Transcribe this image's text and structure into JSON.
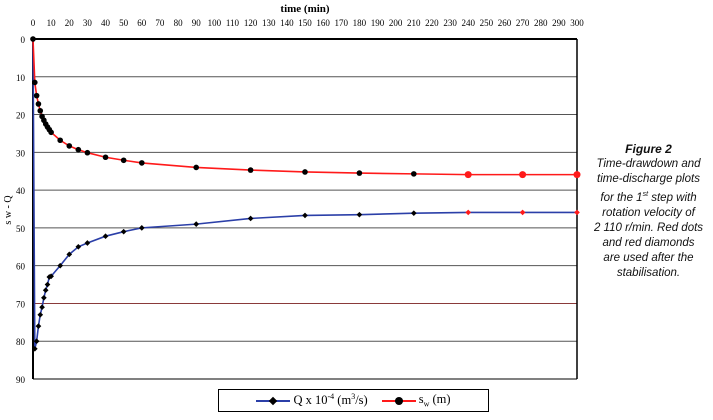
{
  "chart_data": {
    "type": "line",
    "title": "time (min)",
    "xlabel": "time (min)",
    "ylabel": "s w - Q",
    "xlim": [
      0,
      300
    ],
    "ylim": [
      0,
      90
    ],
    "y_inverted": true,
    "x_axis_position": "top",
    "xticks": [
      0,
      10,
      20,
      30,
      40,
      50,
      60,
      70,
      80,
      90,
      100,
      110,
      120,
      130,
      140,
      150,
      160,
      170,
      180,
      190,
      200,
      210,
      220,
      230,
      240,
      250,
      260,
      270,
      280,
      290,
      300
    ],
    "yticks": [
      0,
      10,
      20,
      30,
      40,
      50,
      60,
      70,
      80,
      90
    ],
    "grid": true,
    "legend_placement": "bottom",
    "series": [
      {
        "name": "Q x 10-4 (m3/s)",
        "label_main": "Q x 10",
        "label_exp": "-4",
        "label_unit": " (m",
        "label_unit_exp": "3",
        "label_end": "/s)",
        "color": "#2b3fa8",
        "marker": "diamond",
        "x": [
          0,
          1,
          2,
          3,
          4,
          5,
          6,
          7,
          8,
          9,
          10,
          15,
          20,
          25,
          30,
          40,
          50,
          60,
          90,
          120,
          150,
          180,
          210,
          240,
          270,
          300
        ],
        "y": [
          0,
          82,
          80,
          76,
          73,
          71,
          68.5,
          66.5,
          65,
          63,
          62.8,
          60,
          57,
          55,
          54,
          52.2,
          51,
          50,
          49,
          47.5,
          46.7,
          46.5,
          46.1,
          45.9,
          45.9,
          45.9
        ]
      },
      {
        "name": "sw (m)",
        "label_main": "s",
        "label_sub": "w",
        "label_end": " (m)",
        "color": "#ff1a1a",
        "marker": "circle",
        "x": [
          0,
          1,
          2,
          3,
          4,
          5,
          6,
          7,
          8,
          9,
          10,
          15,
          20,
          25,
          30,
          40,
          50,
          60,
          90,
          120,
          150,
          180,
          210,
          240,
          270,
          300
        ],
        "y": [
          0,
          11.5,
          15,
          17.2,
          19,
          20.5,
          21.5,
          22.5,
          23.3,
          24,
          24.7,
          26.8,
          28.3,
          29.3,
          30.1,
          31.3,
          32.1,
          32.8,
          34,
          34.7,
          35.2,
          35.5,
          35.7,
          35.9,
          35.9,
          35.9
        ]
      }
    ],
    "stabilised_from_x": 240
  },
  "caption": {
    "title": "Figure 2",
    "line1": "Time-drawdown and",
    "line2": "time-discharge plots",
    "line3a": "for the 1",
    "line3sup": "st",
    "line3b": " step with",
    "line4": "rotation velocity of",
    "line5": "2 110 r/min. Red dots",
    "line6": "and red diamonds",
    "line7": "are used after the",
    "line8": "stabilisation."
  }
}
